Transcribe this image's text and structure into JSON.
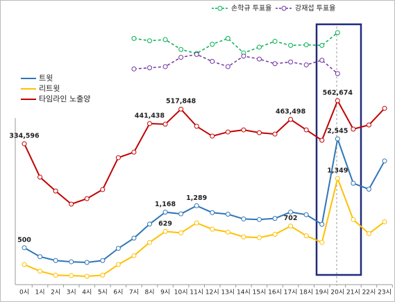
{
  "chart_data": {
    "type": "line",
    "categories": [
      "0시",
      "1시",
      "2시",
      "3시",
      "4시",
      "5시",
      "6시",
      "7시",
      "8시",
      "9시",
      "10시",
      "11시",
      "12시",
      "13시",
      "14시",
      "15시",
      "16시",
      "17시",
      "18시",
      "19시",
      "20시",
      "21시",
      "22시",
      "23시"
    ],
    "series": [
      {
        "name": "손학규 투표율",
        "color": "#00b050",
        "dash": true,
        "values": [
          null,
          null,
          null,
          null,
          null,
          null,
          null,
          51,
          49.4,
          50.2,
          43.4,
          40.6,
          47,
          51,
          41,
          45,
          49,
          46.2,
          46.6,
          46.2,
          55,
          null,
          null,
          null
        ]
      },
      {
        "name": "강재섭 투표율",
        "color": "#7030a0",
        "dash": true,
        "values": [
          null,
          null,
          null,
          null,
          null,
          null,
          null,
          30,
          30.8,
          31.6,
          38,
          40,
          35.2,
          31.6,
          38.8,
          36.8,
          33.6,
          34.8,
          32.8,
          36,
          26.8,
          null,
          null,
          null
        ]
      },
      {
        "name": "트윗",
        "color": "#2e75b6",
        "dash": false,
        "values": [
          500,
          332,
          260,
          236,
          224,
          260,
          488,
          680,
          944,
          1168,
          1136,
          1289,
          1160,
          1130,
          1040,
          1030,
          1050,
          1170,
          1120,
          940,
          2545,
          1710,
          1600,
          2130
        ],
        "value_labels": [
          "500",
          null,
          null,
          null,
          null,
          null,
          null,
          null,
          null,
          "1,168",
          null,
          "1,289",
          null,
          null,
          null,
          null,
          null,
          null,
          null,
          null,
          "2,545",
          null,
          null,
          null
        ]
      },
      {
        "name": "리트윗",
        "color": "#ffc000",
        "dash": false,
        "values": [
          180,
          90,
          35,
          30,
          20,
          35,
          180,
          300,
          480,
          629,
          610,
          745,
          660,
          620,
          555,
          545,
          590,
          702,
          570,
          480,
          1349,
          790,
          600,
          760
        ],
        "value_labels": [
          null,
          null,
          null,
          null,
          null,
          null,
          null,
          null,
          null,
          "629",
          null,
          null,
          null,
          null,
          null,
          null,
          null,
          "702",
          null,
          null,
          "1,349",
          null,
          null,
          null
        ]
      },
      {
        "name": "타임라인 노출양",
        "color": "#c00000",
        "dash": false,
        "values": [
          334596,
          158000,
          84400,
          15000,
          44000,
          92000,
          261000,
          290000,
          441438,
          438000,
          517848,
          427000,
          375000,
          397000,
          408000,
          393000,
          386000,
          463498,
          408000,
          353000,
          562674,
          412000,
          434000,
          522000
        ],
        "value_labels": [
          "334,596",
          null,
          null,
          null,
          null,
          null,
          null,
          null,
          "441,438",
          null,
          "517,848",
          null,
          null,
          null,
          null,
          null,
          null,
          "463,498",
          null,
          null,
          "562,674",
          null,
          null,
          null
        ]
      }
    ]
  }
}
